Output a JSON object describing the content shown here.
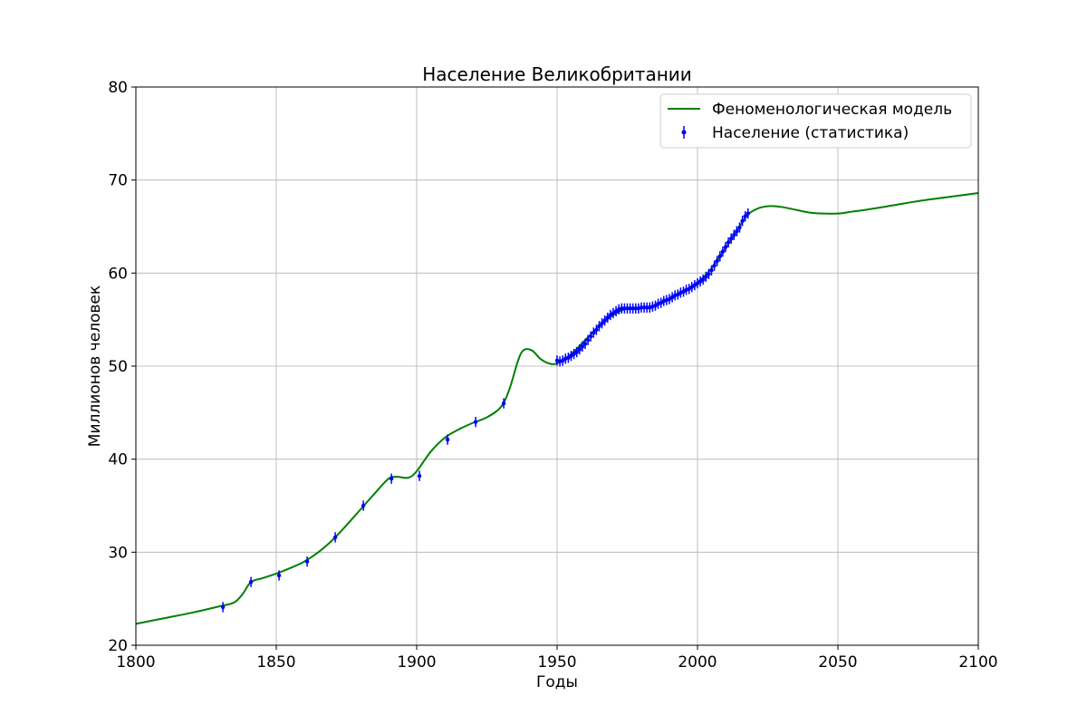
{
  "chart_data": {
    "type": "line",
    "title": "Население Великобритании",
    "xlabel": "Годы",
    "ylabel": "Миллионов человек",
    "xlim": [
      1800,
      2100
    ],
    "ylim": [
      20,
      80
    ],
    "xticks": [
      1800,
      1850,
      1900,
      1950,
      2000,
      2050,
      2100
    ],
    "yticks": [
      20,
      30,
      40,
      50,
      60,
      70,
      80
    ],
    "grid": true,
    "legend": "top-right",
    "series": [
      {
        "name": "Феноменологическая модель",
        "kind": "line",
        "color": "#008000",
        "x": [
          1800,
          1810,
          1820,
          1830,
          1835,
          1838,
          1841,
          1845,
          1850,
          1855,
          1860,
          1865,
          1870,
          1875,
          1880,
          1885,
          1890,
          1893,
          1897,
          1900,
          1905,
          1910,
          1915,
          1920,
          1925,
          1930,
          1933,
          1936,
          1938,
          1941,
          1944,
          1947,
          1950,
          1955,
          1960,
          1965,
          1970,
          1975,
          1980,
          1985,
          1990,
          1995,
          2000,
          2005,
          2010,
          2015,
          2018,
          2022,
          2026,
          2030,
          2035,
          2040,
          2045,
          2050,
          2055,
          2060,
          2070,
          2080,
          2090,
          2100
        ],
        "y": [
          22.3,
          22.9,
          23.5,
          24.2,
          24.6,
          25.5,
          26.8,
          27.2,
          27.7,
          28.3,
          29.0,
          30.0,
          31.3,
          32.9,
          34.6,
          36.3,
          37.9,
          38.1,
          38.0,
          38.7,
          40.8,
          42.3,
          43.2,
          43.9,
          44.5,
          45.6,
          47.5,
          50.5,
          51.7,
          51.7,
          50.8,
          50.3,
          50.3,
          51.3,
          52.8,
          54.3,
          55.5,
          56.2,
          56.3,
          56.5,
          57.2,
          58.0,
          59.0,
          60.5,
          62.7,
          65.0,
          66.3,
          67.0,
          67.2,
          67.1,
          66.8,
          66.5,
          66.4,
          66.4,
          66.6,
          66.8,
          67.3,
          67.8,
          68.2,
          68.6
        ]
      },
      {
        "name": "Население (статистика)",
        "kind": "errorbar",
        "color": "#0000ff",
        "yerr": 0.55,
        "x": [
          1831,
          1841,
          1851,
          1861,
          1871,
          1881,
          1891,
          1901,
          1911,
          1921,
          1931,
          1950,
          1951,
          1952,
          1953,
          1954,
          1955,
          1956,
          1957,
          1958,
          1959,
          1960,
          1961,
          1962,
          1963,
          1964,
          1965,
          1966,
          1967,
          1968,
          1969,
          1970,
          1971,
          1972,
          1973,
          1974,
          1975,
          1976,
          1977,
          1978,
          1979,
          1980,
          1981,
          1982,
          1983,
          1984,
          1985,
          1986,
          1987,
          1988,
          1989,
          1990,
          1991,
          1992,
          1993,
          1994,
          1995,
          1996,
          1997,
          1998,
          1999,
          2000,
          2001,
          2002,
          2003,
          2004,
          2005,
          2006,
          2007,
          2008,
          2009,
          2010,
          2011,
          2012,
          2013,
          2014,
          2015,
          2016,
          2017,
          2018
        ],
        "y": [
          24.1,
          26.8,
          27.5,
          29.0,
          31.6,
          35.0,
          37.9,
          38.2,
          42.1,
          44.0,
          46.0,
          50.6,
          50.5,
          50.6,
          50.8,
          50.9,
          51.1,
          51.3,
          51.5,
          51.8,
          52.1,
          52.4,
          52.8,
          53.2,
          53.6,
          53.9,
          54.3,
          54.6,
          54.9,
          55.2,
          55.5,
          55.7,
          55.9,
          56.1,
          56.2,
          56.2,
          56.2,
          56.2,
          56.2,
          56.2,
          56.2,
          56.3,
          56.3,
          56.3,
          56.3,
          56.4,
          56.5,
          56.7,
          56.8,
          57.0,
          57.1,
          57.2,
          57.4,
          57.6,
          57.7,
          57.9,
          58.0,
          58.2,
          58.3,
          58.5,
          58.7,
          58.9,
          59.1,
          59.3,
          59.6,
          59.9,
          60.3,
          60.8,
          61.3,
          61.8,
          62.3,
          62.8,
          63.3,
          63.7,
          64.1,
          64.5,
          64.9,
          65.6,
          66.1,
          66.4
        ]
      }
    ]
  }
}
